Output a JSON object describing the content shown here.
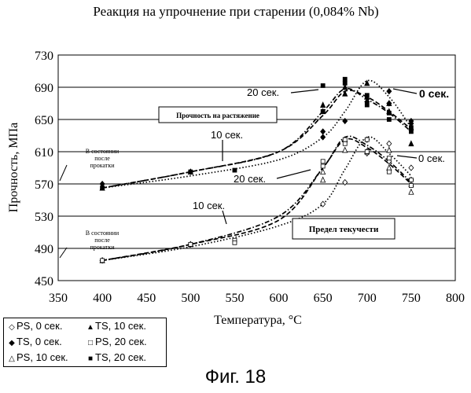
{
  "figure_caption": "Фиг. 18",
  "chart_data": {
    "type": "scatter",
    "title": "Реакция на упрочнение при старении (0,084% Nb)",
    "xlabel": "Температура, °С",
    "ylabel": "Прочность, МПа",
    "xlim": [
      350,
      800
    ],
    "ylim": [
      450,
      730
    ],
    "xticks": [
      "350",
      "400",
      "450",
      "500",
      "550",
      "600",
      "650",
      "700",
      "750",
      "800"
    ],
    "yticks": [
      "450",
      "490",
      "530",
      "570",
      "610",
      "650",
      "690",
      "730"
    ],
    "grid": true,
    "legend_position": "bottom-left",
    "series": [
      {
        "name": "PS, 0 сек.",
        "marker": "diamond-open",
        "points": [
          [
            400,
            475
          ],
          [
            500,
            495
          ],
          [
            650,
            545
          ],
          [
            675,
            572
          ],
          [
            700,
            625
          ],
          [
            700,
            608
          ],
          [
            725,
            620
          ],
          [
            725,
            598
          ],
          [
            750,
            590
          ],
          [
            750,
            575
          ]
        ]
      },
      {
        "name": "TS, 0 сек.",
        "marker": "diamond-filled",
        "points": [
          [
            400,
            570
          ],
          [
            500,
            585
          ],
          [
            650,
            635
          ],
          [
            650,
            628
          ],
          [
            675,
            648
          ],
          [
            700,
            672
          ],
          [
            725,
            685
          ],
          [
            725,
            670
          ],
          [
            750,
            648
          ],
          [
            750,
            645
          ]
        ]
      },
      {
        "name": "PS, 10 сек.",
        "marker": "triangle-open",
        "points": [
          [
            400,
            475
          ],
          [
            500,
            495
          ],
          [
            650,
            585
          ],
          [
            650,
            575
          ],
          [
            675,
            625
          ],
          [
            675,
            612
          ],
          [
            700,
            610
          ],
          [
            725,
            612
          ],
          [
            725,
            590
          ],
          [
            750,
            570
          ],
          [
            750,
            560
          ]
        ]
      },
      {
        "name": "TS, 10 сек.",
        "marker": "triangle-filled",
        "points": [
          [
            400,
            565
          ],
          [
            500,
            585
          ],
          [
            650,
            668
          ],
          [
            650,
            660
          ],
          [
            675,
            690
          ],
          [
            675,
            682
          ],
          [
            700,
            695
          ],
          [
            700,
            678
          ],
          [
            725,
            670
          ],
          [
            725,
            660
          ],
          [
            750,
            640
          ],
          [
            750,
            620
          ]
        ]
      },
      {
        "name": "PS, 20 сек.",
        "marker": "square-open",
        "points": [
          [
            400,
            475
          ],
          [
            500,
            495
          ],
          [
            550,
            500
          ],
          [
            550,
            497
          ],
          [
            650,
            598
          ],
          [
            650,
            592
          ],
          [
            675,
            625
          ],
          [
            675,
            620
          ],
          [
            700,
            625
          ],
          [
            700,
            610
          ],
          [
            725,
            602
          ],
          [
            725,
            585
          ],
          [
            750,
            575
          ],
          [
            750,
            568
          ]
        ]
      },
      {
        "name": "TS, 20 сек.",
        "marker": "square-filled",
        "points": [
          [
            400,
            565
          ],
          [
            500,
            585
          ],
          [
            550,
            587
          ],
          [
            650,
            692
          ],
          [
            650,
            660
          ],
          [
            675,
            700
          ],
          [
            675,
            695
          ],
          [
            700,
            680
          ],
          [
            700,
            668
          ],
          [
            725,
            658
          ],
          [
            725,
            650
          ],
          [
            750,
            640
          ],
          [
            750,
            635
          ]
        ]
      }
    ],
    "curves": [
      {
        "group": "TS",
        "label": "0 сек.",
        "style": "dotted",
        "points": [
          [
            400,
            565
          ],
          [
            500,
            580
          ],
          [
            600,
            600
          ],
          [
            650,
            628
          ],
          [
            675,
            660
          ],
          [
            700,
            698
          ],
          [
            725,
            678
          ],
          [
            750,
            640
          ]
        ]
      },
      {
        "group": "TS",
        "label": "10 сек.",
        "style": "dashdot",
        "points": [
          [
            400,
            565
          ],
          [
            500,
            585
          ],
          [
            600,
            610
          ],
          [
            650,
            660
          ],
          [
            675,
            688
          ],
          [
            700,
            675
          ],
          [
            725,
            658
          ],
          [
            750,
            635
          ]
        ]
      },
      {
        "group": "TS",
        "label": "20 сек.",
        "style": "dashed",
        "points": [
          [
            400,
            565
          ],
          [
            500,
            585
          ],
          [
            600,
            610
          ],
          [
            650,
            655
          ],
          [
            675,
            685
          ],
          [
            700,
            678
          ],
          [
            725,
            660
          ],
          [
            750,
            638
          ]
        ]
      },
      {
        "group": "PS",
        "label": "0 сек.",
        "style": "dotted",
        "points": [
          [
            400,
            475
          ],
          [
            500,
            492
          ],
          [
            600,
            518
          ],
          [
            650,
            545
          ],
          [
            675,
            588
          ],
          [
            700,
            628
          ],
          [
            725,
            608
          ],
          [
            750,
            580
          ]
        ]
      },
      {
        "group": "PS",
        "label": "10 сек.",
        "style": "dashdot",
        "points": [
          [
            400,
            475
          ],
          [
            500,
            495
          ],
          [
            600,
            530
          ],
          [
            650,
            590
          ],
          [
            675,
            628
          ],
          [
            700,
            618
          ],
          [
            725,
            598
          ],
          [
            750,
            572
          ]
        ]
      },
      {
        "group": "PS",
        "label": "20 сек.",
        "style": "dashed",
        "points": [
          [
            400,
            475
          ],
          [
            500,
            495
          ],
          [
            600,
            525
          ],
          [
            650,
            590
          ],
          [
            675,
            625
          ],
          [
            700,
            615
          ],
          [
            725,
            595
          ],
          [
            750,
            570
          ]
        ]
      }
    ],
    "annotations": {
      "ts_label": "Прочность на растяжение",
      "ps_label": "Предел текучести",
      "initial_state_ts": [
        "В состоянии",
        "после",
        "прокатки"
      ],
      "initial_state_ps": [
        "В состоянии",
        "после",
        "прокатки"
      ],
      "ts_0s": "0 сек.",
      "ts_10s": "10 сек.",
      "ts_20s": "20 сек.",
      "ps_0s": "0 сек.",
      "ps_10s": "10 сек.",
      "ps_20s": "20 сек."
    }
  }
}
